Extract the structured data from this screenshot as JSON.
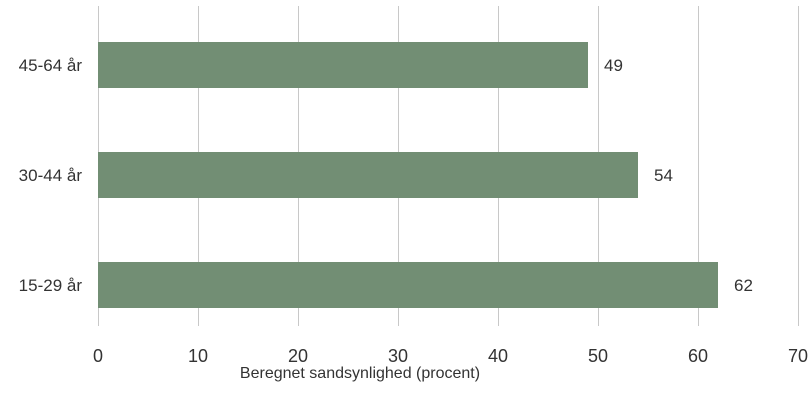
{
  "chart_data": {
    "type": "bar",
    "orientation": "horizontal",
    "categories": [
      "45-64 år",
      "30-44 år",
      "15-29 år"
    ],
    "values": [
      49,
      54,
      62
    ],
    "data_labels": [
      "49",
      "54",
      "62"
    ],
    "xlabel": "Beregnet sandsynlighed (procent)",
    "ylabel": "",
    "xlim": [
      0,
      70
    ],
    "xticks": [
      0,
      10,
      20,
      30,
      40,
      50,
      60,
      70
    ],
    "xtick_labels": [
      "0",
      "10",
      "20",
      "30",
      "40",
      "50",
      "60",
      "70"
    ],
    "grid": true,
    "legend": "none",
    "colors": {
      "bar": "#728e74",
      "grid": "#c8c8c8",
      "text": "#333333"
    }
  }
}
